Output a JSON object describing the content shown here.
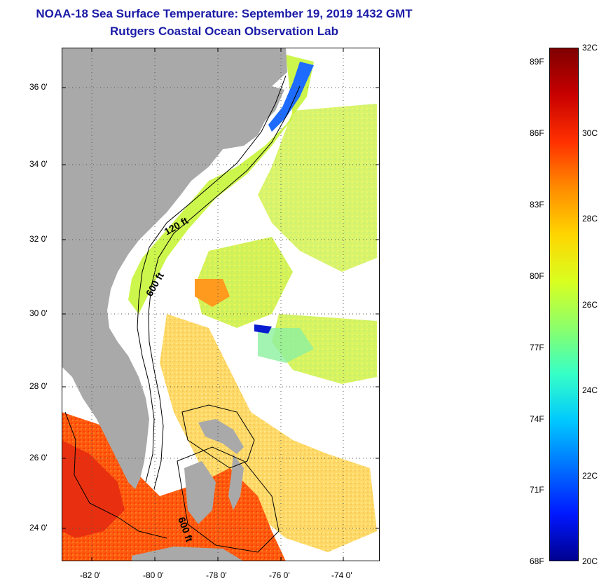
{
  "header": {
    "title": "NOAA-18 Sea Surface Temperature:  September 19, 2019 1432 GMT",
    "subtitle": "Rutgers Coastal Ocean Observation Lab"
  },
  "map": {
    "latitude_labels": [
      "36 0'",
      "34 0'",
      "32 0'",
      "30 0'",
      "28 0'",
      "26 0'",
      "24 0'"
    ],
    "longitude_labels": [
      "-82 0'",
      "-80 0'",
      "-78 0'",
      "-76 0'",
      "-74 0'"
    ],
    "lat_range": [
      23.0,
      37.1
    ],
    "lon_range": [
      -83.0,
      -72.9
    ],
    "contour_labels": [
      "120 ft",
      "600 ft",
      "600 ft"
    ],
    "colors": {
      "land": "#a9a9a9",
      "no_data": "#ffffff",
      "contour": "#000000"
    }
  },
  "colorbar": {
    "celsius_labels": [
      "32C",
      "30C",
      "28C",
      "26C",
      "24C",
      "22C",
      "20C"
    ],
    "fahrenheit_labels": [
      "89F",
      "86F",
      "83F",
      "80F",
      "77F",
      "74F",
      "71F",
      "68F"
    ],
    "range_c": [
      20,
      32
    ],
    "colors": [
      "#7f0000",
      "#c80000",
      "#ff3000",
      "#ff8c00",
      "#ffd500",
      "#d9ff1f",
      "#8cff6a",
      "#35ffc7",
      "#00c8ff",
      "#0070ff",
      "#0018ff",
      "#00008f"
    ]
  }
}
